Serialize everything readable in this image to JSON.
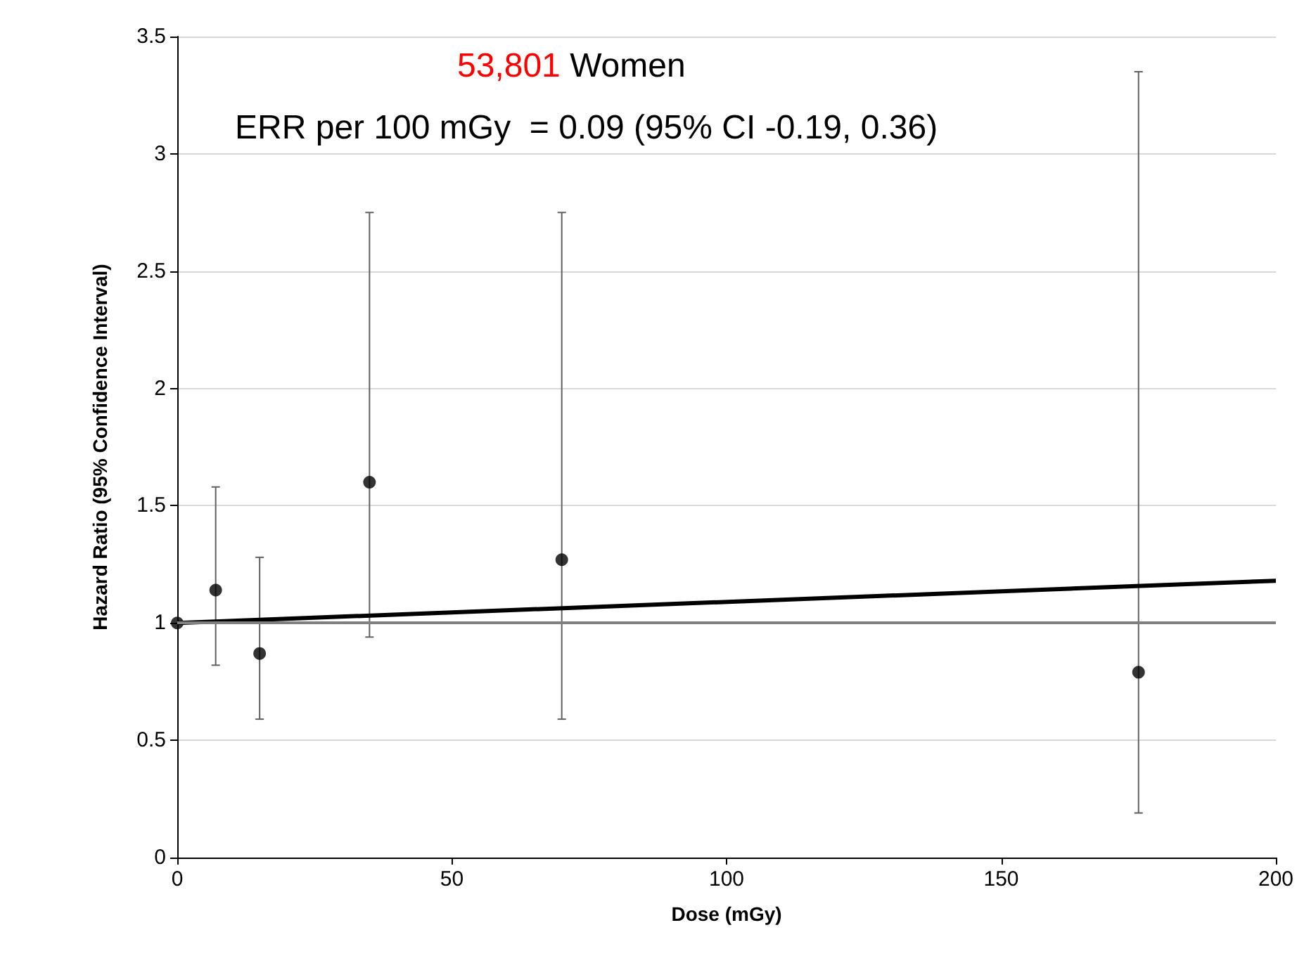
{
  "chart_data": {
    "type": "scatter",
    "title": "53,801 Women",
    "subtitle": "ERR per 100 mGy  = 0.09 (95% CI -0.19, 0.36)",
    "xlabel": "Dose (mGy)",
    "ylabel": "Hazard Ratio (95% Confidence Interval)",
    "series": [
      {
        "marker": "circle",
        "color": "#000000",
        "x": [
          0,
          7,
          15,
          35,
          70,
          175
        ],
        "values": [
          1.0,
          1.14,
          0.87,
          1.6,
          1.27,
          0.79
        ],
        "errors": [
          null,
          [
            0.82,
            1.58
          ],
          [
            0.59,
            1.28
          ],
          [
            0.94,
            2.75
          ],
          [
            0.59,
            2.75
          ],
          [
            0.19,
            3.35
          ]
        ]
      },
      {
        "type": "line",
        "color": "#000000",
        "x": [
          0,
          200
        ],
        "values": [
          1.0,
          1.18
        ]
      }
    ],
    "ref_lines": [
      {
        "axis": "y",
        "value": 1,
        "color": "#808080"
      }
    ],
    "xlim": [
      0,
      200
    ],
    "xticks": [
      0,
      50,
      100,
      150,
      200
    ],
    "ylim": [
      0,
      3.5
    ],
    "yticks": [
      0,
      0.5,
      1,
      1.5,
      2,
      2.5,
      3,
      3.5
    ],
    "grid": "y"
  }
}
